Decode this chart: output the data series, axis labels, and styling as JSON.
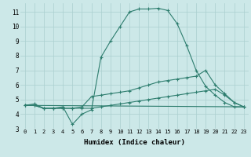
{
  "xlabel": "Humidex (Indice chaleur)",
  "bg_color": "#cce8e8",
  "line_color": "#2d7d6e",
  "grid_color": "#aacfcf",
  "xlim": [
    -0.5,
    23.5
  ],
  "ylim": [
    3,
    11.6
  ],
  "xtick_labels": [
    "0",
    "1",
    "2",
    "3",
    "4",
    "5",
    "6",
    "7",
    "8",
    "9",
    "10",
    "11",
    "12",
    "13",
    "14",
    "15",
    "16",
    "17",
    "18",
    "19",
    "20",
    "21",
    "22",
    "23"
  ],
  "yticks": [
    3,
    4,
    5,
    6,
    7,
    8,
    9,
    10,
    11
  ],
  "series": [
    {
      "x": [
        0,
        1,
        2,
        3,
        4,
        5,
        6,
        7,
        8,
        9,
        10,
        11,
        12,
        13,
        14,
        15,
        16,
        17,
        18,
        19,
        20,
        21,
        22,
        23
      ],
      "y": [
        4.6,
        4.7,
        4.4,
        4.4,
        4.5,
        3.3,
        4.0,
        4.3,
        7.9,
        9.0,
        10.0,
        11.0,
        11.2,
        11.2,
        11.25,
        11.1,
        10.2,
        8.7,
        7.0,
        5.9,
        5.3,
        4.8,
        4.5,
        4.5
      ],
      "marker": true
    },
    {
      "x": [
        0,
        1,
        2,
        3,
        4,
        5,
        6,
        7,
        8,
        9,
        10,
        11,
        12,
        13,
        14,
        15,
        16,
        17,
        18,
        19,
        20,
        21,
        22,
        23
      ],
      "y": [
        4.6,
        4.6,
        4.4,
        4.4,
        4.4,
        4.4,
        4.5,
        5.2,
        5.3,
        5.4,
        5.5,
        5.6,
        5.8,
        6.0,
        6.2,
        6.3,
        6.4,
        6.5,
        6.6,
        7.0,
        6.0,
        5.4,
        4.8,
        4.5
      ],
      "marker": true
    },
    {
      "x": [
        0,
        1,
        2,
        3,
        4,
        5,
        6,
        7,
        8,
        9,
        10,
        11,
        12,
        13,
        14,
        15,
        16,
        17,
        18,
        19,
        20,
        21,
        22,
        23
      ],
      "y": [
        4.6,
        4.6,
        4.4,
        4.4,
        4.4,
        4.4,
        4.4,
        4.4,
        4.5,
        4.6,
        4.7,
        4.8,
        4.9,
        5.0,
        5.1,
        5.2,
        5.3,
        5.4,
        5.5,
        5.6,
        5.7,
        5.3,
        4.8,
        4.5
      ],
      "marker": true
    },
    {
      "x": [
        0,
        23
      ],
      "y": [
        4.6,
        4.5
      ],
      "marker": false
    }
  ]
}
